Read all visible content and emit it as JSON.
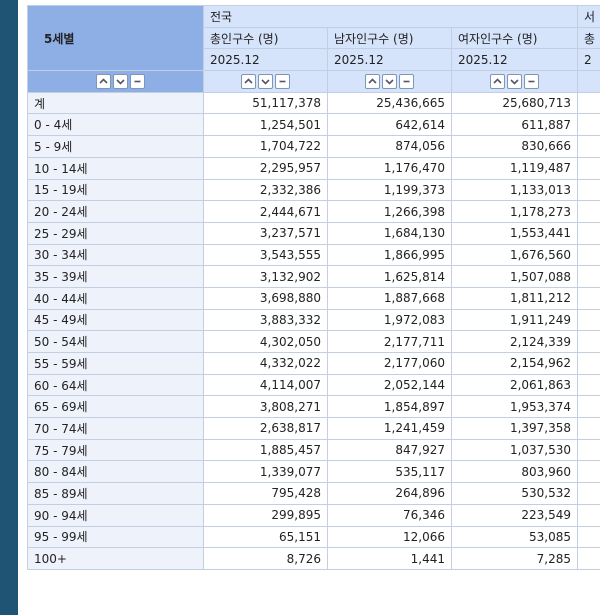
{
  "header": {
    "row_title": "5세별",
    "region": "전국",
    "region_next": "서",
    "columns": [
      "총인구수 (명)",
      "남자인구수 (명)",
      "여자인구수 (명)"
    ],
    "column_next": "총",
    "period": "2025.12",
    "period_next": "2"
  },
  "rows": [
    {
      "label": "계",
      "values": [
        "51,117,378",
        "25,436,665",
        "25,680,713"
      ]
    },
    {
      "label": "0 - 4세",
      "values": [
        "1,254,501",
        "642,614",
        "611,887"
      ]
    },
    {
      "label": "5 - 9세",
      "values": [
        "1,704,722",
        "874,056",
        "830,666"
      ]
    },
    {
      "label": "10 - 14세",
      "values": [
        "2,295,957",
        "1,176,470",
        "1,119,487"
      ]
    },
    {
      "label": "15 - 19세",
      "values": [
        "2,332,386",
        "1,199,373",
        "1,133,013"
      ]
    },
    {
      "label": "20 - 24세",
      "values": [
        "2,444,671",
        "1,266,398",
        "1,178,273"
      ]
    },
    {
      "label": "25 - 29세",
      "values": [
        "3,237,571",
        "1,684,130",
        "1,553,441"
      ]
    },
    {
      "label": "30 - 34세",
      "values": [
        "3,543,555",
        "1,866,995",
        "1,676,560"
      ]
    },
    {
      "label": "35 - 39세",
      "values": [
        "3,132,902",
        "1,625,814",
        "1,507,088"
      ]
    },
    {
      "label": "40 - 44세",
      "values": [
        "3,698,880",
        "1,887,668",
        "1,811,212"
      ]
    },
    {
      "label": "45 - 49세",
      "values": [
        "3,883,332",
        "1,972,083",
        "1,911,249"
      ]
    },
    {
      "label": "50 - 54세",
      "values": [
        "4,302,050",
        "2,177,711",
        "2,124,339"
      ]
    },
    {
      "label": "55 - 59세",
      "values": [
        "4,332,022",
        "2,177,060",
        "2,154,962"
      ]
    },
    {
      "label": "60 - 64세",
      "values": [
        "4,114,007",
        "2,052,144",
        "2,061,863"
      ]
    },
    {
      "label": "65 - 69세",
      "values": [
        "3,808,271",
        "1,854,897",
        "1,953,374"
      ]
    },
    {
      "label": "70 - 74세",
      "values": [
        "2,638,817",
        "1,241,459",
        "1,397,358"
      ]
    },
    {
      "label": "75 - 79세",
      "values": [
        "1,885,457",
        "847,927",
        "1,037,530"
      ]
    },
    {
      "label": "80 - 84세",
      "values": [
        "1,339,077",
        "535,117",
        "803,960"
      ]
    },
    {
      "label": "85 - 89세",
      "values": [
        "795,428",
        "264,896",
        "530,532"
      ]
    },
    {
      "label": "90 - 94세",
      "values": [
        "299,895",
        "76,346",
        "223,549"
      ]
    },
    {
      "label": "95 - 99세",
      "values": [
        "65,151",
        "12,066",
        "53,085"
      ]
    },
    {
      "label": "100+",
      "values": [
        "8,726",
        "1,441",
        "7,285"
      ]
    }
  ]
}
